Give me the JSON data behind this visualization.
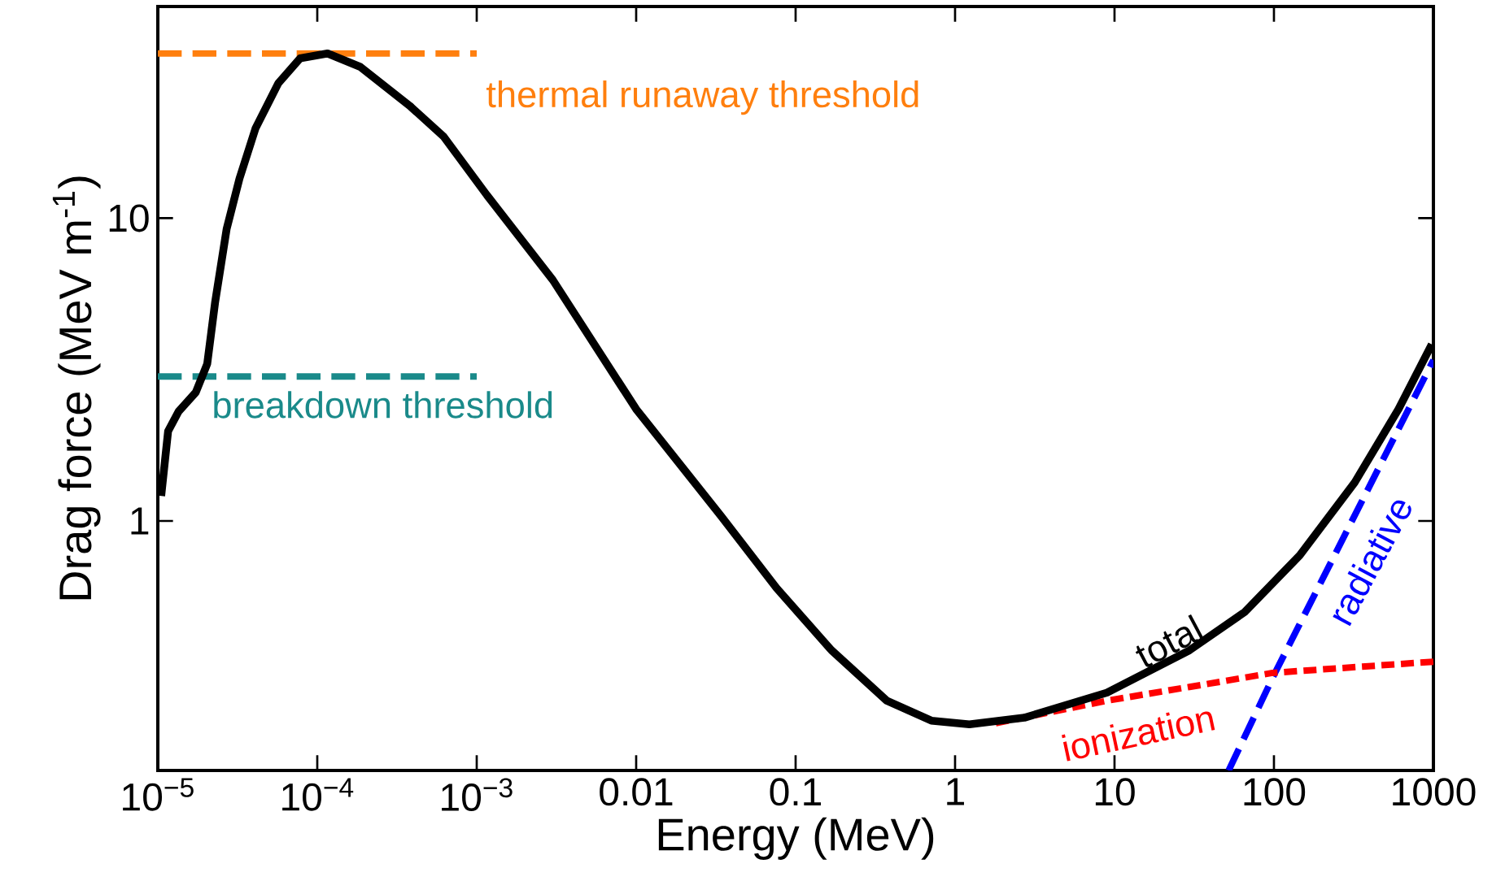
{
  "chart_data": {
    "type": "line",
    "log": "xy",
    "xlabel": "Energy (MeV)",
    "ylabel": "Drag force (MeV m$^{-1}$)",
    "xlim": [
      1e-05,
      1000
    ],
    "ylim": [
      0.15,
      50
    ],
    "xticks": [
      {
        "value": 1e-05,
        "label": "10$^{−5}$"
      },
      {
        "value": 0.0001,
        "label": "10$^{−4}$"
      },
      {
        "value": 0.001,
        "label": "10$^{−3}$"
      },
      0.01,
      0.1,
      1,
      10,
      100,
      1000
    ],
    "yticks": [
      1,
      10
    ],
    "marker": "none",
    "series": [
      {
        "name": "total",
        "color": "#000000",
        "line_style": "solid",
        "x": [
          1.05e-05,
          1.16e-05,
          1.35e-05,
          1.73e-05,
          2.04e-05,
          2.29e-05,
          2.7e-05,
          3.25e-05,
          4.1e-05,
          5.7e-05,
          7.8e-05,
          0.000116,
          0.000186,
          0.00038,
          0.00062,
          0.00116,
          0.003,
          0.01,
          0.034,
          0.076,
          0.168,
          0.373,
          0.71,
          1.23,
          2.72,
          8.97,
          29.5,
          65.5,
          145,
          321,
          604,
          977
        ],
        "values": [
          1.21,
          1.98,
          2.3,
          2.66,
          3.3,
          5.3,
          9.2,
          13.5,
          19.8,
          27.9,
          33.7,
          35,
          31.6,
          23.5,
          18.6,
          11.9,
          6.25,
          2.34,
          1.04,
          0.6,
          0.374,
          0.255,
          0.219,
          0.213,
          0.224,
          0.271,
          0.374,
          0.5,
          0.77,
          1.34,
          2.34,
          3.83
        ]
      },
      {
        "name": "ionization",
        "color": "#ff0000",
        "line_style": "dotted",
        "x": [
          1.8,
          8.97,
          29.5,
          98,
          1000
        ],
        "values": [
          0.215,
          0.255,
          0.283,
          0.315,
          0.343
        ]
      },
      {
        "name": "radiative",
        "color": "#0000ff",
        "line_style": "dashed",
        "x": [
          52,
          100,
          1000
        ],
        "values": [
          0.15,
          0.31,
          3.4
        ]
      },
      {
        "name": "thermal runaway threshold",
        "color": "#ff7f0e",
        "line_style": "dashed",
        "x": [
          1e-05,
          0.001
        ],
        "values": [
          35,
          35
        ]
      },
      {
        "name": "breakdown threshold",
        "color": "#1a8a8a",
        "line_style": "dashed",
        "x": [
          1e-05,
          0.001
        ],
        "values": [
          3,
          3
        ]
      }
    ]
  }
}
